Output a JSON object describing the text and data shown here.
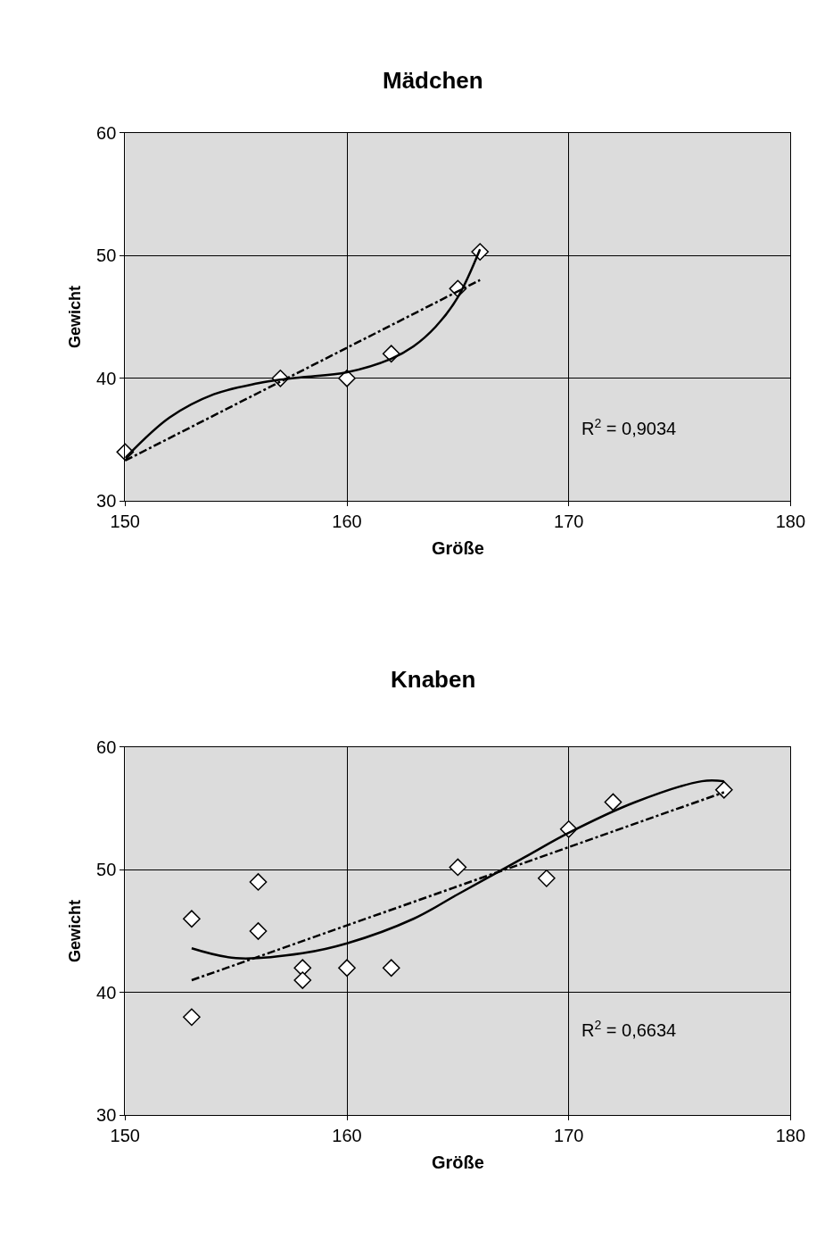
{
  "chart_data": [
    {
      "type": "scatter",
      "title": "Mädchen",
      "xlabel": "Größe",
      "ylabel": "Gewicht",
      "xlim": [
        150,
        180
      ],
      "xticks": [
        150,
        160,
        170,
        180
      ],
      "ylim": [
        30,
        60
      ],
      "yticks": [
        30,
        40,
        50,
        60
      ],
      "grid": true,
      "marker": "diamond",
      "annotations": [
        "R$^{2}$ = 0,9034"
      ],
      "series": [
        {
          "color": "#ffffff",
          "x": [
            150,
            157,
            160,
            162,
            165,
            166
          ],
          "values": [
            34,
            40,
            40,
            42,
            47.3,
            50.3
          ]
        },
        {
          "type": "line",
          "color": "#000000",
          "marker": "none",
          "line_style": "solid",
          "x": [
            150,
            152,
            154,
            156,
            157,
            158,
            160,
            162,
            163,
            164,
            165,
            166
          ],
          "values": [
            33.5,
            36.8,
            38.7,
            39.6,
            39.9,
            40.1,
            40.5,
            41.6,
            42.6,
            44.2,
            46.6,
            50.5
          ]
        },
        {
          "type": "line",
          "color": "#000000",
          "marker": "none",
          "line_style": "dashed",
          "x": [
            150,
            166
          ],
          "values": [
            33.3,
            48
          ]
        }
      ]
    },
    {
      "type": "scatter",
      "title": "Knaben",
      "xlabel": "Größe",
      "ylabel": "Gewicht",
      "xlim": [
        150,
        180
      ],
      "xticks": [
        150,
        160,
        170,
        180
      ],
      "ylim": [
        30,
        60
      ],
      "yticks": [
        30,
        40,
        50,
        60
      ],
      "grid": true,
      "marker": "diamond",
      "annotations": [
        "R$^{2}$ = 0,6634"
      ],
      "series": [
        {
          "color": "#ffffff",
          "x": [
            153,
            153,
            156,
            156,
            158,
            158,
            160,
            162,
            165,
            169,
            170,
            172,
            177
          ],
          "values": [
            46,
            38,
            49,
            45,
            42,
            41,
            42,
            42,
            50.2,
            49.3,
            53.3,
            55.5,
            56.5
          ]
        },
        {
          "type": "line",
          "color": "#000000",
          "marker": "none",
          "line_style": "solid",
          "x": [
            153,
            155,
            158,
            160,
            163,
            165,
            168,
            170,
            173,
            176,
            177
          ],
          "values": [
            43.6,
            42.8,
            43.2,
            44,
            46,
            48,
            51,
            53,
            55.5,
            57.2,
            57.2
          ]
        },
        {
          "type": "line",
          "color": "#000000",
          "marker": "none",
          "line_style": "dashed",
          "x": [
            153,
            177
          ],
          "values": [
            41,
            56.3
          ]
        }
      ]
    }
  ]
}
